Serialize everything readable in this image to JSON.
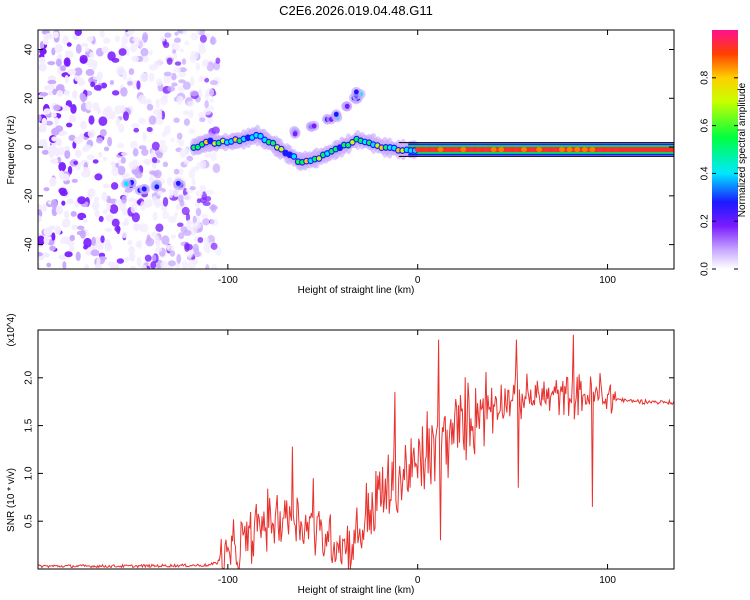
{
  "title": "C2E6.2026.019.04.48.G11",
  "chart_data": [
    {
      "type": "heatmap",
      "xlabel": "Height of straight line (km)",
      "ylabel": "Frequency (Hz)",
      "xlim": [
        -200,
        135
      ],
      "ylim": [
        -50,
        48
      ],
      "xticks": [
        -100,
        0,
        100
      ],
      "yticks": [
        -40,
        -20,
        0,
        20,
        40
      ],
      "colorbar": {
        "label": "Normalized spectral amplitude",
        "range": [
          0,
          1
        ],
        "ticks": [
          0.0,
          0.2,
          0.4,
          0.6,
          0.8
        ],
        "tick_labels": [
          "0.0",
          "0.2",
          "0.4",
          "0.6",
          "0.8"
        ]
      },
      "noise_region": {
        "x_range": [
          -200,
          -105
        ],
        "freq_range": [
          -50,
          48
        ]
      },
      "ridge_main": [
        {
          "x": -118,
          "f": 0
        },
        {
          "x": -110,
          "f": 2
        },
        {
          "x": -100,
          "f": 2
        },
        {
          "x": -92,
          "f": 3
        },
        {
          "x": -85,
          "f": 5
        },
        {
          "x": -78,
          "f": 2
        },
        {
          "x": -70,
          "f": -2
        },
        {
          "x": -62,
          "f": -6
        },
        {
          "x": -55,
          "f": -5
        },
        {
          "x": -48,
          "f": -3
        },
        {
          "x": -40,
          "f": 0
        },
        {
          "x": -32,
          "f": 3
        },
        {
          "x": -25,
          "f": 2
        },
        {
          "x": -18,
          "f": 0
        },
        {
          "x": -10,
          "f": -1
        },
        {
          "x": 0,
          "f": -1
        },
        {
          "x": 20,
          "f": -1
        },
        {
          "x": 60,
          "f": -1
        },
        {
          "x": 100,
          "f": -1
        },
        {
          "x": 135,
          "f": -1
        }
      ],
      "ridge_upper": [
        {
          "x": -65,
          "f": 6
        },
        {
          "x": -55,
          "f": 9
        },
        {
          "x": -47,
          "f": 12
        },
        {
          "x": -42,
          "f": 13
        },
        {
          "x": -38,
          "f": 16
        },
        {
          "x": -33,
          "f": 20
        },
        {
          "x": -31,
          "f": 22
        }
      ],
      "ridge_lower": [
        {
          "x": -152,
          "f": -15
        },
        {
          "x": -145,
          "f": -17
        },
        {
          "x": -138,
          "f": -16
        },
        {
          "x": -125,
          "f": -15
        }
      ]
    },
    {
      "type": "line",
      "xlabel": "Height of straight line (km)",
      "ylabel": "SNR (10 * v/v)",
      "multiplier_label": "(x10^4)",
      "xlim": [
        -200,
        135
      ],
      "ylim": [
        0,
        2.5
      ],
      "xticks": [
        -100,
        0,
        100
      ],
      "yticks": [
        0.5,
        1.0,
        1.5,
        2.0
      ],
      "ytick_labels": [
        "0.5",
        "1.0",
        "1.5",
        "2.0"
      ],
      "series": [
        {
          "name": "SNR",
          "color": "#e8322e",
          "points": [
            {
              "x": -200,
              "y": 0.03
            },
            {
              "x": -150,
              "y": 0.03
            },
            {
              "x": -110,
              "y": 0.04
            },
            {
              "x": -100,
              "y": 0.1
            },
            {
              "x": -90,
              "y": 0.3
            },
            {
              "x": -80,
              "y": 0.5
            },
            {
              "x": -65,
              "y": 0.55
            },
            {
              "x": -50,
              "y": 0.35
            },
            {
              "x": -35,
              "y": 0.25
            },
            {
              "x": -25,
              "y": 0.6
            },
            {
              "x": -15,
              "y": 0.85
            },
            {
              "x": -5,
              "y": 1.0
            },
            {
              "x": 5,
              "y": 1.15
            },
            {
              "x": 15,
              "y": 1.35
            },
            {
              "x": 25,
              "y": 1.55
            },
            {
              "x": 35,
              "y": 1.7
            },
            {
              "x": 45,
              "y": 1.78
            },
            {
              "x": 60,
              "y": 1.8
            },
            {
              "x": 80,
              "y": 1.82
            },
            {
              "x": 100,
              "y": 1.8
            },
            {
              "x": 110,
              "y": 1.76
            },
            {
              "x": 135,
              "y": 1.74
            }
          ],
          "spikes": [
            {
              "x": -85,
              "y": 0.68
            },
            {
              "x": -70,
              "y": 0.72
            },
            {
              "x": -66,
              "y": 1.28
            },
            {
              "x": -55,
              "y": 0.95
            },
            {
              "x": -40,
              "y": 0.05
            },
            {
              "x": -20,
              "y": 1.02
            },
            {
              "x": -12,
              "y": 1.85
            },
            {
              "x": 5,
              "y": 1.65
            },
            {
              "x": 11,
              "y": 2.4
            },
            {
              "x": 12,
              "y": 0.3
            },
            {
              "x": 52,
              "y": 2.4
            },
            {
              "x": 53,
              "y": 0.85
            },
            {
              "x": 82,
              "y": 2.45
            },
            {
              "x": 92,
              "y": 0.65
            },
            {
              "x": 96,
              "y": 2.05
            }
          ]
        }
      ]
    }
  ]
}
